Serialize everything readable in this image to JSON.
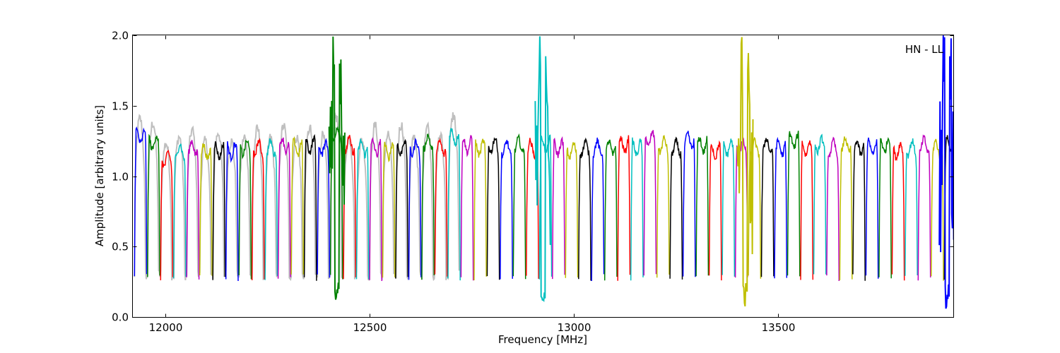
{
  "chart_data": {
    "type": "line",
    "title": "",
    "xlabel": "Frequency [MHz]",
    "ylabel": "Amplitude [arbitrary units]",
    "xlim": [
      11920,
      13930
    ],
    "ylim": [
      0.0,
      2.0
    ],
    "grid": false,
    "x_ticks": [
      12000,
      12500,
      13000,
      13500
    ],
    "x_tick_labels": [
      "12000",
      "12500",
      "13000",
      "13500"
    ],
    "y_ticks": [
      0.0,
      0.5,
      1.0,
      1.5,
      2.0
    ],
    "y_tick_labels": [
      "0.0",
      "0.5",
      "1.0",
      "1.5",
      "2.0"
    ],
    "annotation": "HN - LL",
    "colors": [
      "#0000ff",
      "#008000",
      "#ff0000",
      "#00bfbf",
      "#bf00bf",
      "#bfbf00",
      "#000000"
    ],
    "reference_color": "#bfbfbf",
    "channel_width_mhz": 32,
    "first_channel_start_mhz": 11924,
    "channel_plateau_levels": [
      1.28,
      1.24,
      1.12,
      1.18,
      1.2,
      1.17,
      1.18,
      1.18,
      1.2,
      1.2,
      1.2,
      1.22,
      1.2,
      1.22,
      1.2,
      1.3,
      1.22,
      1.2,
      1.2,
      1.18,
      1.2,
      1.2,
      1.24,
      1.2,
      1.28,
      1.22,
      1.2,
      1.22,
      1.2,
      1.22,
      1.2,
      1.22,
      1.2,
      1.18,
      1.2,
      1.2,
      1.2,
      1.22,
      1.2,
      1.26,
      1.22,
      1.2,
      1.25,
      1.22,
      1.18,
      1.2,
      1.2,
      1.2,
      1.22,
      1.2,
      1.25,
      1.2,
      1.22,
      1.2,
      1.22,
      1.2,
      1.2,
      1.22,
      1.18,
      1.2,
      1.22,
      1.2,
      1.22
    ],
    "rfi_spikes": [
      {
        "x": 12420,
        "min": 0.05,
        "max": 2.0,
        "color": "#008000"
      },
      {
        "x": 12925,
        "min": 0.08,
        "max": 2.0,
        "color": "#00bfbf"
      },
      {
        "x": 13420,
        "min": 0.05,
        "max": 2.0,
        "color": "#bfbf00"
      },
      {
        "x": 13915,
        "min": 0.05,
        "max": 2.0,
        "color": "#0000ff"
      }
    ]
  }
}
